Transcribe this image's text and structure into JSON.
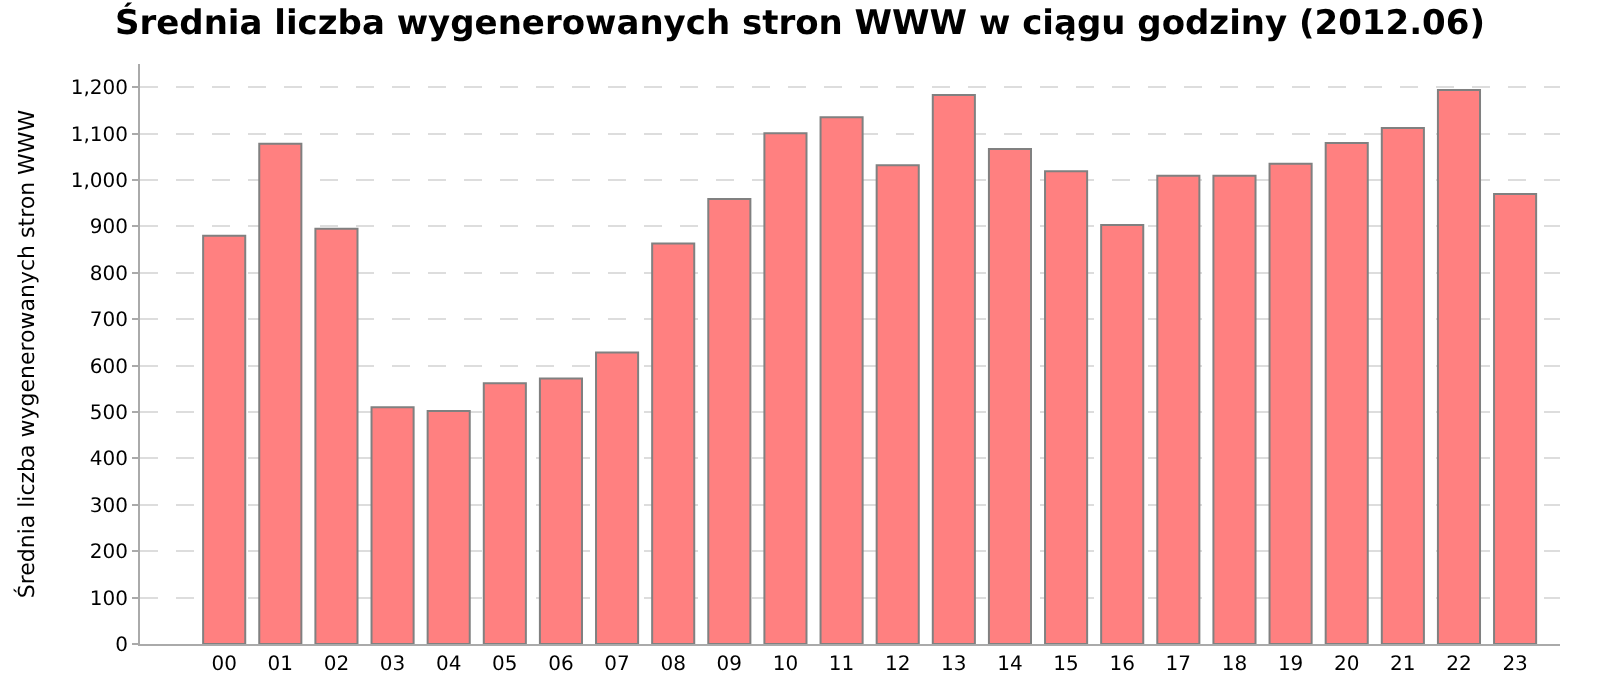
{
  "chart_data": {
    "type": "bar",
    "title": "Średnia liczba wygenerowanych stron WWW w ciągu godziny (2012.06)",
    "ylabel": "Średnia liczba wygenerowanych stron WWW",
    "categories": [
      "00",
      "01",
      "02",
      "03",
      "04",
      "05",
      "06",
      "07",
      "08",
      "09",
      "10",
      "11",
      "12",
      "13",
      "14",
      "15",
      "16",
      "17",
      "18",
      "19",
      "20",
      "21",
      "22",
      "23"
    ],
    "values": [
      880,
      1078,
      895,
      510,
      502,
      562,
      572,
      628,
      863,
      959,
      1101,
      1135,
      1032,
      1183,
      1067,
      1019,
      903,
      1009,
      1009,
      1035,
      1080,
      1112,
      1194,
      970
    ],
    "color": "#ff8080",
    "ylim": [
      0,
      1250
    ],
    "yticks": [
      0,
      100,
      200,
      300,
      400,
      500,
      600,
      700,
      800,
      900,
      {
        "value": 1000,
        "label": "1,000"
      },
      {
        "value": 1100,
        "label": "1,100"
      },
      {
        "value": 1200,
        "label": "1,200"
      }
    ],
    "grid": "y"
  }
}
